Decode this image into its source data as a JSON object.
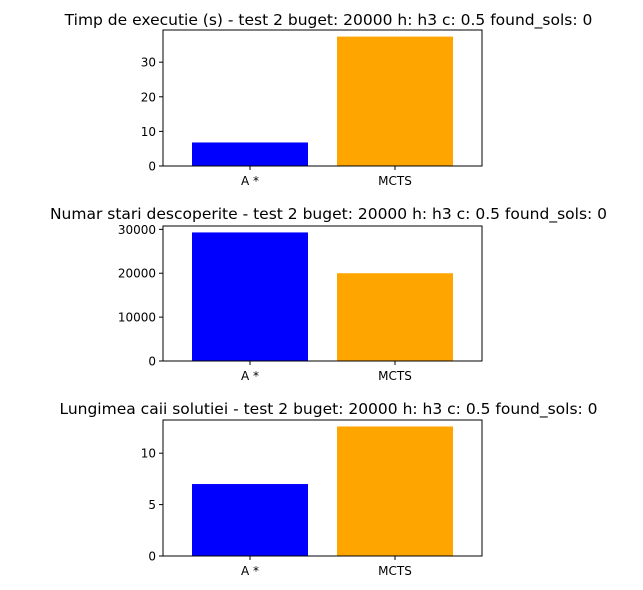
{
  "chart_data": [
    {
      "type": "bar",
      "title": "Timp de executie (s) - test 2   buget: 20000  h: h3  c: 0.5  found_sols: 0",
      "categories": [
        "A *",
        "MCTS"
      ],
      "values": [
        6.8,
        37.4
      ],
      "colors": [
        "#0000ff",
        "#ffa500"
      ],
      "ylim": [
        0,
        39.3
      ],
      "yticks": [
        0,
        10,
        20,
        30
      ],
      "xlabel": "",
      "ylabel": "",
      "grid": false
    },
    {
      "type": "bar",
      "title": "Numar stari descoperite - test 2   buget: 20000  h: h3  c: 0.5  found_sols: 0",
      "categories": [
        "A *",
        "MCTS"
      ],
      "values": [
        29300,
        20000
      ],
      "colors": [
        "#0000ff",
        "#ffa500"
      ],
      "ylim": [
        0,
        30765
      ],
      "yticks": [
        0,
        10000,
        20000,
        30000
      ],
      "xlabel": "",
      "ylabel": "",
      "grid": false
    },
    {
      "type": "bar",
      "title": "Lungimea caii solutiei - test 2   buget: 20000  h: h3  c: 0.5  found_sols: 0",
      "categories": [
        "A *",
        "MCTS"
      ],
      "values": [
        7,
        12.6
      ],
      "colors": [
        "#0000ff",
        "#ffa500"
      ],
      "ylim": [
        0,
        13.23
      ],
      "yticks": [
        0,
        5,
        10
      ],
      "xlabel": "",
      "ylabel": "",
      "grid": false
    }
  ]
}
